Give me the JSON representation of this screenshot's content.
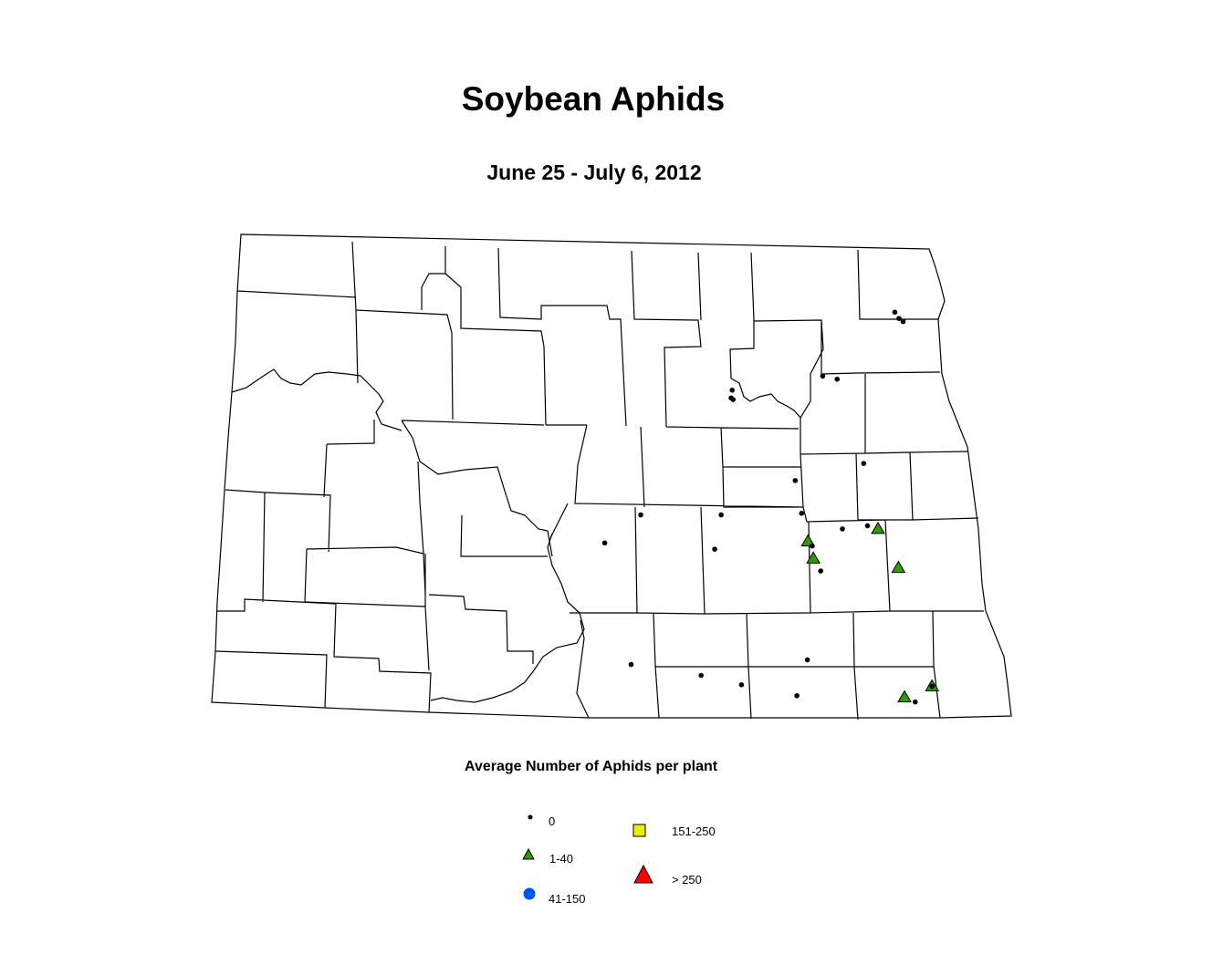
{
  "title": "Soybean Aphids",
  "subtitle": "June 25 - July 6, 2012",
  "legend": {
    "title": "Average Number of Aphids per plant",
    "classes": [
      {
        "label": "0",
        "symbol": "dot",
        "color": "#000000"
      },
      {
        "label": "1-40",
        "symbol": "triangle",
        "color": "#339900"
      },
      {
        "label": "41-150",
        "symbol": "circle",
        "color": "#0055ee"
      },
      {
        "label": "151-250",
        "symbol": "square",
        "color": "#eeee00"
      },
      {
        "label": "> 250",
        "symbol": "triangle-large",
        "color": "#ff0000"
      }
    ]
  },
  "map": {
    "region": "North Dakota counties",
    "sites": [
      {
        "lon": -97.6,
        "lat": 48.53,
        "class": "0"
      },
      {
        "lon": -97.56,
        "lat": 48.49,
        "class": "0"
      },
      {
        "lon": -97.52,
        "lat": 48.47,
        "class": "0"
      },
      {
        "lon": -99.19,
        "lat": 48.03,
        "class": "0"
      },
      {
        "lon": -99.2,
        "lat": 47.98,
        "class": "0"
      },
      {
        "lon": -99.18,
        "lat": 47.97,
        "class": "0"
      },
      {
        "lon": -98.31,
        "lat": 48.12,
        "class": "0"
      },
      {
        "lon": -98.17,
        "lat": 48.1,
        "class": "0"
      },
      {
        "lon": -97.92,
        "lat": 47.56,
        "class": "0"
      },
      {
        "lon": -98.58,
        "lat": 47.45,
        "class": "0"
      },
      {
        "lon": -98.52,
        "lat": 47.24,
        "class": "0"
      },
      {
        "lon": -99.29,
        "lat": 47.23,
        "class": "0"
      },
      {
        "lon": -100.06,
        "lat": 47.23,
        "class": "0"
      },
      {
        "lon": -100.4,
        "lat": 47.05,
        "class": "0"
      },
      {
        "lon": -99.35,
        "lat": 47.01,
        "class": "0"
      },
      {
        "lon": -98.13,
        "lat": 47.14,
        "class": "0"
      },
      {
        "lon": -97.89,
        "lat": 47.16,
        "class": "0"
      },
      {
        "lon": -98.42,
        "lat": 47.03,
        "class": "0"
      },
      {
        "lon": -98.34,
        "lat": 46.87,
        "class": "0"
      },
      {
        "lon": -100.13,
        "lat": 46.27,
        "class": "0"
      },
      {
        "lon": -99.47,
        "lat": 46.2,
        "class": "0"
      },
      {
        "lon": -99.09,
        "lat": 46.14,
        "class": "0"
      },
      {
        "lon": -98.47,
        "lat": 46.3,
        "class": "0"
      },
      {
        "lon": -98.57,
        "lat": 46.07,
        "class": "0"
      },
      {
        "lon": -97.46,
        "lat": 46.03,
        "class": "0"
      },
      {
        "lon": -98.46,
        "lat": 47.06,
        "class": "1-40"
      },
      {
        "lon": -98.41,
        "lat": 46.95,
        "class": "1-40"
      },
      {
        "lon": -97.79,
        "lat": 47.14,
        "class": "1-40"
      },
      {
        "lon": -97.6,
        "lat": 46.89,
        "class": "1-40"
      },
      {
        "lon": -97.56,
        "lat": 46.06,
        "class": "1-40"
      },
      {
        "lon": -97.3,
        "lat": 46.13,
        "class": "1-40"
      },
      {
        "lon": -97.3,
        "lat": 46.13,
        "class": "0"
      }
    ]
  }
}
